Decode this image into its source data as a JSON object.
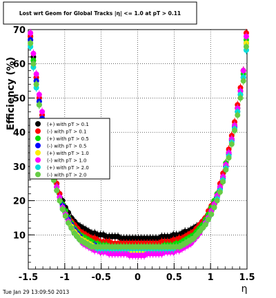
{
  "footer_timestamp": "Tue Jan 29 13:09:50 2013",
  "chart_data": {
    "type": "scatter",
    "title": "Lost wrt Geom for Global Tracks |η| <= 1.0 at pT > 0.11",
    "xlabel": "η",
    "ylabel": "Efficiency (%)",
    "xlim": [
      -1.5,
      1.5
    ],
    "ylim": [
      0,
      70
    ],
    "x_ticks": [
      -1.5,
      -1,
      -0.5,
      0,
      0.5,
      1,
      1.5
    ],
    "x_tick_labels": [
      "-1.5",
      "-1",
      "-0.5",
      "0",
      "0.5",
      "1",
      "1.5"
    ],
    "y_ticks": [
      10,
      20,
      30,
      40,
      50,
      60,
      70
    ],
    "y_tick_labels": [
      "10",
      "20",
      "30",
      "40",
      "50",
      "60",
      "70"
    ],
    "grid": true,
    "legend_position": "left-middle",
    "legend": [
      {
        "label": "(+) with pT > 0.1",
        "color": "#000000"
      },
      {
        "label": "(-) with pT > 0.1",
        "color": "#ff0000"
      },
      {
        "label": "(+) with pT > 0.5",
        "color": "#00dd00"
      },
      {
        "label": "(-) with pT > 0.5",
        "color": "#0000ff"
      },
      {
        "label": "(+) with pT > 1.0",
        "color": "#ffee00"
      },
      {
        "label": "(-) with pT > 1.0",
        "color": "#ff00ff"
      },
      {
        "label": "(+) with pT > 2.0",
        "color": "#00dddd"
      },
      {
        "label": "(-) with pT > 2.0",
        "color": "#66cc44"
      }
    ],
    "x": [
      -1.47,
      -1.43,
      -1.39,
      -1.35,
      -1.31,
      -1.27,
      -1.23,
      -1.19,
      -1.15,
      -1.11,
      -1.07,
      -1.03,
      -0.99,
      -0.95,
      -0.91,
      -0.87,
      -0.83,
      -0.79,
      -0.75,
      -0.71,
      -0.67,
      -0.63,
      -0.59,
      -0.55,
      -0.51,
      -0.47,
      -0.43,
      -0.39,
      -0.35,
      -0.31,
      -0.27,
      -0.23,
      -0.19,
      -0.15,
      -0.11,
      -0.07,
      -0.03,
      0.01,
      0.05,
      0.09,
      0.13,
      0.17,
      0.21,
      0.25,
      0.29,
      0.33,
      0.37,
      0.41,
      0.45,
      0.49,
      0.53,
      0.57,
      0.61,
      0.65,
      0.69,
      0.73,
      0.77,
      0.81,
      0.85,
      0.89,
      0.93,
      0.97,
      1.01,
      1.05,
      1.09,
      1.13,
      1.17,
      1.21,
      1.25,
      1.29,
      1.33,
      1.37,
      1.41,
      1.45,
      1.49
    ],
    "series": [
      {
        "name": "(+) with pT > 0.1",
        "values": [
          68,
          62,
          56,
          50,
          45,
          40,
          36,
          32,
          28,
          25,
          22,
          20,
          18,
          16.5,
          15,
          14,
          13,
          12.5,
          12,
          11.5,
          11,
          10.5,
          10.5,
          10,
          10,
          10,
          9.5,
          9.5,
          9.5,
          9.5,
          9.5,
          9,
          9,
          9,
          9,
          9,
          9,
          9,
          9,
          9,
          9,
          9,
          9,
          9,
          9,
          9.5,
          9.5,
          9.5,
          9.5,
          10,
          10,
          10,
          10.5,
          11,
          11,
          11.5,
          12,
          12.5,
          13,
          14,
          15,
          16,
          18,
          19.5,
          21.5,
          24,
          27,
          30,
          34,
          38,
          42,
          47,
          52,
          58,
          66
        ]
      },
      {
        "name": "(-) with pT > 0.1",
        "values": [
          68,
          61,
          56,
          50,
          45,
          40,
          36,
          32,
          28,
          25,
          22,
          19,
          17,
          15,
          14,
          13,
          12,
          11,
          10.5,
          10,
          9.5,
          9,
          9,
          8.5,
          8,
          8,
          8,
          8,
          7.5,
          7.5,
          7.5,
          7.5,
          7.5,
          7.5,
          7.5,
          7.5,
          7.5,
          7.5,
          7.5,
          7.5,
          7.5,
          7.5,
          7.5,
          7.5,
          7.5,
          8,
          8,
          8,
          8,
          8.5,
          8.5,
          9,
          9,
          9.5,
          10,
          10.5,
          11,
          12,
          13,
          14,
          15,
          17,
          18.5,
          20,
          22,
          25,
          28,
          31,
          35,
          39,
          43,
          48,
          53,
          58,
          69
        ]
      },
      {
        "name": "(+) with pT > 0.5",
        "values": [
          67,
          61,
          55,
          49,
          44,
          39,
          35,
          31,
          27,
          24,
          21,
          19,
          17,
          15,
          13.5,
          12,
          11,
          10,
          9.5,
          9,
          8.5,
          8,
          7.5,
          7.5,
          7,
          7,
          7,
          6.5,
          6.5,
          6.5,
          6.5,
          6.5,
          6.5,
          6.5,
          6.5,
          6.5,
          6.5,
          6.5,
          6.5,
          6.5,
          6.5,
          6.5,
          6.5,
          6.5,
          6.5,
          6.5,
          7,
          7,
          7,
          7,
          7.5,
          7.5,
          8,
          8.5,
          9,
          9.5,
          10,
          11,
          12,
          13,
          14.5,
          16,
          18,
          20,
          22,
          24,
          27,
          31,
          34,
          38,
          42,
          47,
          52,
          57,
          67
        ]
      },
      {
        "name": "(-) with pT > 0.5",
        "values": [
          67,
          60,
          55,
          49,
          44,
          39,
          34,
          30,
          27,
          24,
          21,
          18.5,
          16,
          14.5,
          13,
          11.5,
          10.5,
          9.5,
          8.5,
          8,
          7.5,
          7,
          7,
          6.5,
          6.5,
          6,
          6,
          6,
          6,
          5.5,
          5.5,
          5.5,
          5.5,
          5.5,
          5.5,
          5.5,
          5.5,
          5.5,
          5.5,
          5.5,
          5.5,
          5.5,
          5.5,
          5.5,
          5.5,
          6,
          6,
          6,
          6,
          6,
          6.5,
          6.5,
          7,
          7.5,
          8,
          8.5,
          9,
          10,
          11,
          12,
          13.5,
          15,
          17,
          19,
          21,
          23.5,
          26.5,
          30,
          33.5,
          37.5,
          41.5,
          46,
          51,
          56,
          66
        ]
      },
      {
        "name": "(+) with pT > 1.0",
        "values": [
          66,
          59,
          54,
          48,
          43,
          38,
          34,
          30,
          26,
          23,
          20,
          18,
          16,
          14,
          12.5,
          11,
          10,
          9,
          8.5,
          8,
          7.5,
          7,
          6.5,
          6.5,
          6,
          6,
          6,
          6,
          5.5,
          5.5,
          5.5,
          5.5,
          5.5,
          5.5,
          5.5,
          5.5,
          5.5,
          5.5,
          5.5,
          5.5,
          5.5,
          5.5,
          5.5,
          5.5,
          5.5,
          5.5,
          6,
          6,
          6,
          6,
          6.5,
          6.5,
          7,
          7.5,
          8,
          8.5,
          9,
          10,
          11,
          12,
          13,
          15,
          16.5,
          18.5,
          20.5,
          23,
          26,
          29.5,
          33,
          37,
          41,
          46,
          51,
          56,
          66
        ]
      },
      {
        "name": "(-) with pT > 1.0",
        "values": [
          69,
          63,
          57,
          51,
          46,
          41,
          36,
          32,
          28,
          24,
          21,
          18,
          16,
          14,
          12,
          10.5,
          9.5,
          8.5,
          7.5,
          7,
          6.5,
          6,
          5.5,
          5.5,
          5,
          5,
          5,
          4.5,
          4.5,
          4.5,
          4.5,
          4.5,
          4.5,
          4.5,
          4,
          4,
          4,
          4,
          4,
          4,
          4.5,
          4.5,
          4.5,
          4.5,
          4.5,
          4.5,
          5,
          5,
          5,
          5,
          5.5,
          5.5,
          6,
          6.5,
          7,
          7.5,
          8.5,
          9.5,
          10.5,
          12,
          13.5,
          15,
          17,
          19,
          21.5,
          24,
          27,
          30.5,
          34,
          38,
          42,
          47,
          52,
          58,
          68
        ]
      },
      {
        "name": "(+) with pT > 2.0",
        "values": [
          65,
          59,
          53,
          48,
          42,
          38,
          34,
          30,
          26,
          23,
          20,
          17.5,
          15.5,
          13.5,
          12,
          10.5,
          9.5,
          8.5,
          8,
          7.5,
          7,
          6.5,
          6.5,
          6,
          6,
          6,
          6,
          6,
          6,
          6,
          6,
          6,
          6,
          6,
          6,
          6,
          6,
          6,
          6,
          6,
          6,
          6,
          6,
          6,
          6,
          6,
          6,
          6,
          6,
          6,
          6.5,
          6.5,
          7,
          7.5,
          8,
          8.5,
          9,
          10,
          11,
          12,
          13,
          14.5,
          16,
          18,
          20.5,
          23,
          26,
          29.5,
          33,
          37,
          41,
          46,
          51,
          56,
          64
        ]
      },
      {
        "name": "(-) with pT > 2.0",
        "values": [
          66,
          60,
          54,
          48,
          43,
          38,
          34,
          30,
          26,
          23,
          20,
          17.5,
          15.5,
          13.5,
          12,
          10.5,
          9.5,
          8.5,
          8,
          7.5,
          7,
          6.5,
          6.5,
          6.5,
          6.5,
          6.5,
          6.5,
          6.5,
          6.5,
          6.5,
          6.5,
          6.5,
          6.5,
          6.5,
          6.5,
          6.5,
          6.5,
          6.5,
          6.5,
          6.5,
          6.5,
          6.5,
          6.5,
          6.5,
          6.5,
          6.5,
          6.5,
          6.5,
          6.5,
          6.5,
          6.5,
          6.5,
          7,
          7.5,
          8,
          8.5,
          9,
          10,
          11,
          12,
          13,
          14.5,
          16,
          18,
          20,
          22.5,
          25.5,
          29,
          32.5,
          36.5,
          40.5,
          45,
          50,
          55,
          65
        ]
      }
    ]
  }
}
